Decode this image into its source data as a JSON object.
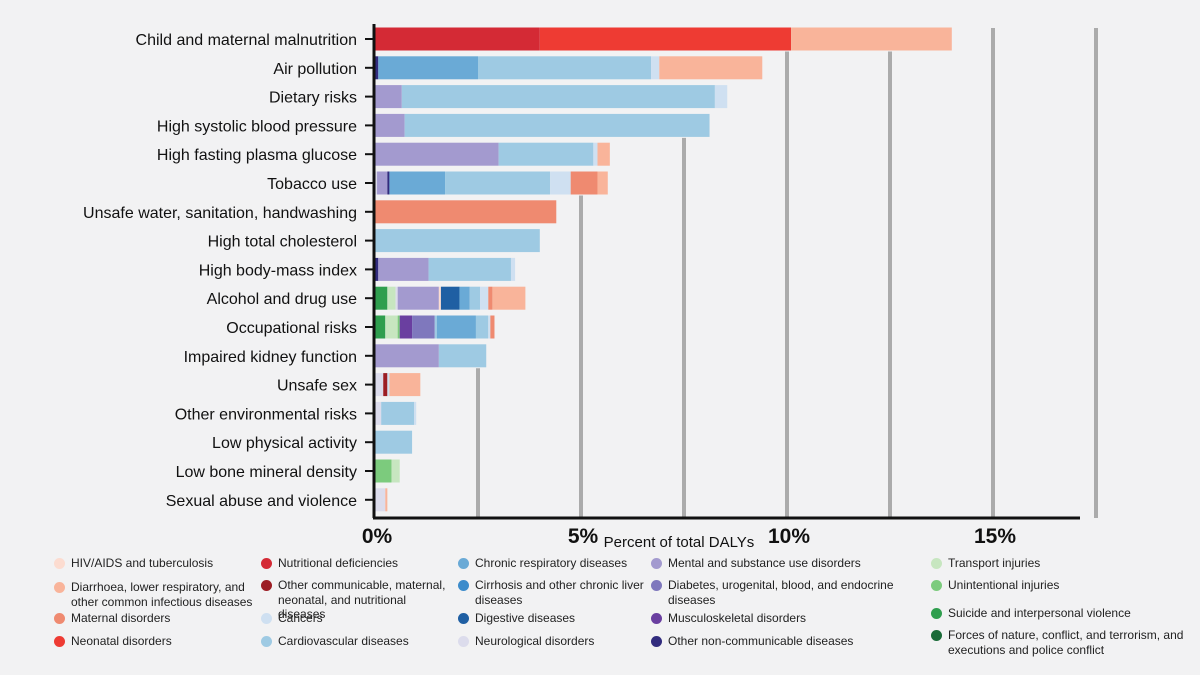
{
  "chart_data": {
    "type": "bar",
    "orientation": "horizontal",
    "stacked": true,
    "xlabel": "Percent of total DALYs",
    "xlim": [
      0,
      17.5
    ],
    "ticks": [
      {
        "value": 0,
        "label": "0%"
      },
      {
        "value": 5,
        "label": "5%"
      },
      {
        "value": 10,
        "label": "10%"
      },
      {
        "value": 15,
        "label": "15%"
      }
    ],
    "gridlines": [
      2.5,
      5,
      7.5,
      10,
      12.5,
      15,
      17.5
    ],
    "categories": [
      {
        "key": "hiv",
        "name": "HIV/AIDS and tuberculosis",
        "color": "#fcdcd0"
      },
      {
        "key": "diarr",
        "name": "Diarrhoea, lower respiratory, and other common infectious diseases",
        "color": "#f9b49a"
      },
      {
        "key": "mat",
        "name": "Maternal disorders",
        "color": "#ef8a70"
      },
      {
        "key": "neo",
        "name": "Neonatal disorders",
        "color": "#ee3b33"
      },
      {
        "key": "nut",
        "name": "Nutritional deficiencies",
        "color": "#d42a35"
      },
      {
        "key": "othcomm",
        "name": "Other communicable, maternal, neonatal, and nutritional diseases",
        "color": "#9c1d24"
      },
      {
        "key": "cancer",
        "name": "Cancers",
        "color": "#cfe0f1"
      },
      {
        "key": "cardio",
        "name": "Cardiovascular diseases",
        "color": "#9ecae3"
      },
      {
        "key": "resp",
        "name": "Chronic respiratory diseases",
        "color": "#6aaad6"
      },
      {
        "key": "cirr",
        "name": "Cirrhosis and other chronic liver diseases",
        "color": "#3d8ccb"
      },
      {
        "key": "dig",
        "name": "Digestive diseases",
        "color": "#1f5fa3"
      },
      {
        "key": "neuro",
        "name": "Neurological disorders",
        "color": "#dcdcec"
      },
      {
        "key": "mental",
        "name": "Mental and substance use disorders",
        "color": "#a39acf"
      },
      {
        "key": "diab",
        "name": "Diabetes, urogenital, blood, and endocrine diseases",
        "color": "#7f78bd"
      },
      {
        "key": "msk",
        "name": "Musculoskeletal disorders",
        "color": "#6a3fa0"
      },
      {
        "key": "othnc",
        "name": "Other non-communicable diseases",
        "color": "#322c7e"
      },
      {
        "key": "trans",
        "name": "Transport injuries",
        "color": "#c7e6c0"
      },
      {
        "key": "unint",
        "name": "Unintentional injuries",
        "color": "#7ccb7d"
      },
      {
        "key": "suic",
        "name": "Suicide and interpersonal violence",
        "color": "#2f9e4e"
      },
      {
        "key": "forces",
        "name": "Forces of nature, conflict, and terrorism, and executions and police conflict",
        "color": "#1a6b38"
      }
    ],
    "risks": [
      {
        "name": "Child and maternal malnutrition",
        "segments": [
          [
            "nut",
            4.0
          ],
          [
            "neo",
            6.1
          ],
          [
            "diarr",
            3.9
          ]
        ]
      },
      {
        "name": "Air pollution",
        "segments": [
          [
            "othnc",
            0.08
          ],
          [
            "resp",
            2.42
          ],
          [
            "cardio",
            4.2
          ],
          [
            "cancer",
            0.2
          ],
          [
            "diarr",
            2.5
          ]
        ]
      },
      {
        "name": "Dietary risks",
        "segments": [
          [
            "mental",
            0.65
          ],
          [
            "cardio",
            7.6
          ],
          [
            "cancer",
            0.3
          ]
        ]
      },
      {
        "name": "High systolic blood pressure",
        "segments": [
          [
            "mental",
            0.72
          ],
          [
            "cardio",
            7.4
          ]
        ]
      },
      {
        "name": "High fasting plasma glucose",
        "segments": [
          [
            "mental",
            3.0
          ],
          [
            "cardio",
            2.3
          ],
          [
            "cancer",
            0.1
          ],
          [
            "diarr",
            0.3
          ]
        ]
      },
      {
        "name": "Tobacco use",
        "segments": [
          [
            "neuro",
            0.05
          ],
          [
            "mental",
            0.25
          ],
          [
            "othnc",
            0.05
          ],
          [
            "resp",
            1.35
          ],
          [
            "cardio",
            2.55
          ],
          [
            "cancer",
            0.5
          ],
          [
            "mat",
            0.65
          ],
          [
            "diarr",
            0.25
          ]
        ]
      },
      {
        "name": "Unsafe water, sanitation, handwashing",
        "segments": [
          [
            "mat",
            4.4
          ]
        ]
      },
      {
        "name": "High total cholesterol",
        "segments": [
          [
            "cardio",
            4.0
          ]
        ]
      },
      {
        "name": "High body-mass index",
        "segments": [
          [
            "othnc",
            0.08
          ],
          [
            "mental",
            1.22
          ],
          [
            "cardio",
            2.0
          ],
          [
            "cancer",
            0.1
          ]
        ]
      },
      {
        "name": "Alcohol and drug use",
        "segments": [
          [
            "suic",
            0.3
          ],
          [
            "trans",
            0.2
          ],
          [
            "neuro",
            0.05
          ],
          [
            "mental",
            1.0
          ],
          [
            "hiv",
            0.05
          ],
          [
            "dig",
            0.45
          ],
          [
            "resp",
            0.25
          ],
          [
            "cardio",
            0.25
          ],
          [
            "cancer",
            0.2
          ],
          [
            "mat",
            0.1
          ],
          [
            "diarr",
            0.8
          ]
        ]
      },
      {
        "name": "Occupational risks",
        "segments": [
          [
            "suic",
            0.25
          ],
          [
            "trans",
            0.3
          ],
          [
            "unint",
            0.05
          ],
          [
            "msk",
            0.3
          ],
          [
            "diab",
            0.55
          ],
          [
            "cardio",
            0.05
          ],
          [
            "resp",
            0.95
          ],
          [
            "cardio",
            0.3
          ],
          [
            "cancer",
            0.05
          ],
          [
            "mat",
            0.1
          ]
        ]
      },
      {
        "name": "Impaired kidney function",
        "segments": [
          [
            "mental",
            1.55
          ],
          [
            "cardio",
            1.15
          ]
        ]
      },
      {
        "name": "Unsafe sex",
        "segments": [
          [
            "neuro",
            0.2
          ],
          [
            "othcomm",
            0.1
          ],
          [
            "cancer",
            0.05
          ],
          [
            "diarr",
            0.75
          ]
        ]
      },
      {
        "name": "Other environmental risks",
        "segments": [
          [
            "neuro",
            0.15
          ],
          [
            "cardio",
            0.8
          ],
          [
            "cancer",
            0.05
          ]
        ]
      },
      {
        "name": "Low physical activity",
        "segments": [
          [
            "cardio",
            0.9
          ]
        ]
      },
      {
        "name": "Low bone mineral density",
        "segments": [
          [
            "unint",
            0.4
          ],
          [
            "trans",
            0.2
          ]
        ]
      },
      {
        "name": "Sexual abuse and violence",
        "segments": [
          [
            "neuro",
            0.25
          ],
          [
            "diarr",
            0.05
          ]
        ]
      }
    ]
  }
}
